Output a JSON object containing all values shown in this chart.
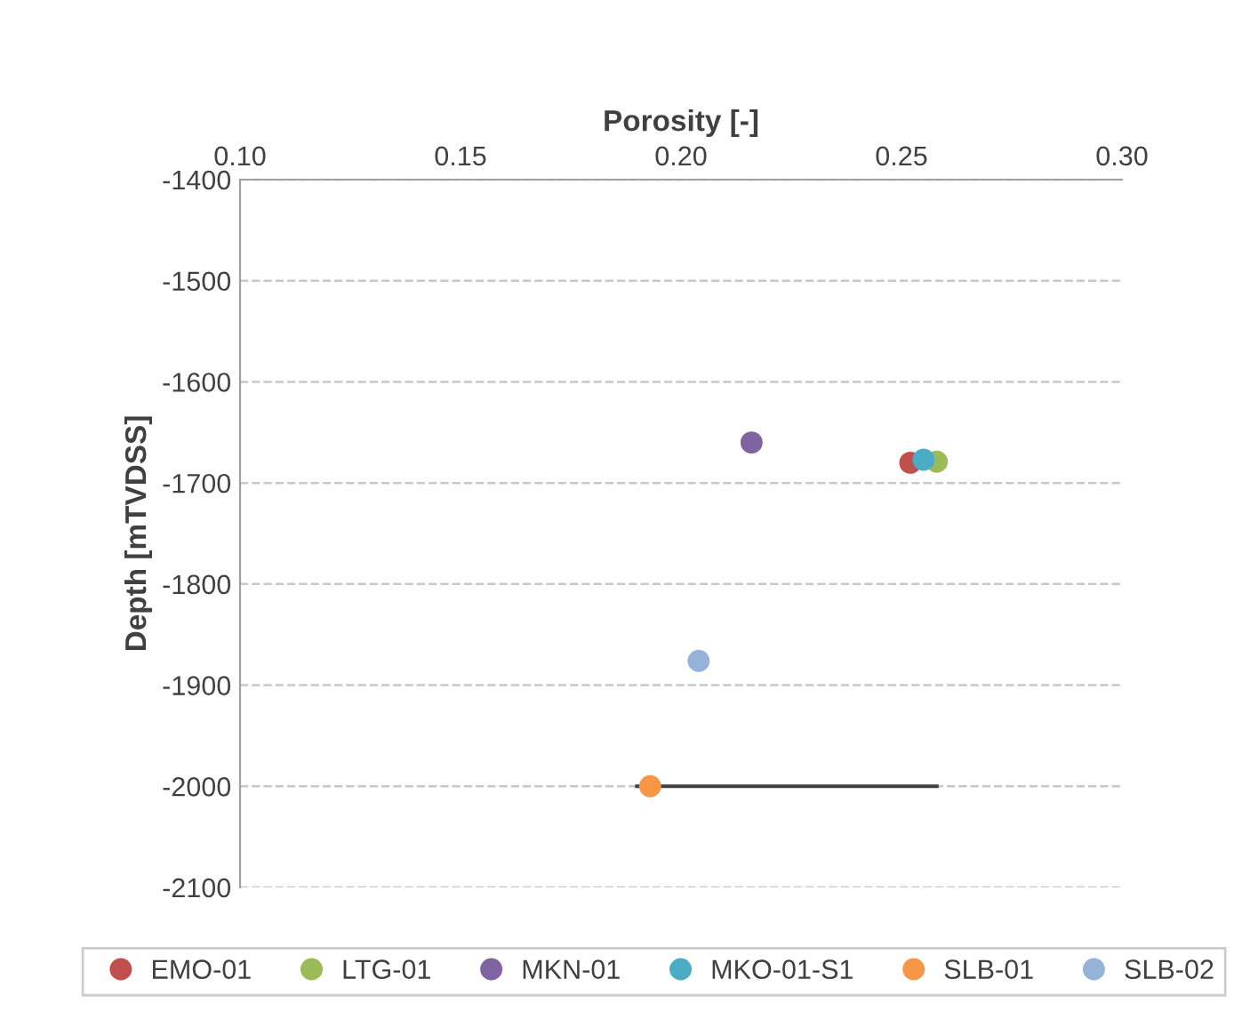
{
  "chart_data": {
    "type": "scatter",
    "xlabel": "Porosity [-]",
    "ylabel": "Depth [mTVDSS]",
    "xlim": [
      0.1,
      0.3
    ],
    "xticks": [
      {
        "value": 0.1,
        "label": "0.10"
      },
      {
        "value": 0.15,
        "label": "0.15"
      },
      {
        "value": 0.2,
        "label": "0.20"
      },
      {
        "value": 0.25,
        "label": "0.25"
      },
      {
        "value": 0.3,
        "label": "0.30"
      }
    ],
    "ylim": [
      -2100,
      -1400
    ],
    "yticks": [
      -2100,
      -2000,
      -1900,
      -1800,
      -1700,
      -1600,
      -1500,
      -1400
    ],
    "grid": "y",
    "legend": "bottom",
    "marker": "circle",
    "series": [
      {
        "name": "EMO-01",
        "color": "#c0504d",
        "x": [
          0.252
        ],
        "values": [
          -1680
        ]
      },
      {
        "name": "LTG-01",
        "color": "#9bbb59",
        "x": [
          0.258
        ],
        "values": [
          -1679
        ]
      },
      {
        "name": "MKN-01",
        "color": "#8064a2",
        "x": [
          0.216
        ],
        "values": [
          -1660
        ]
      },
      {
        "name": "MKO-01-S1",
        "color": "#4bacc6",
        "x": [
          0.255
        ],
        "values": [
          -1677
        ]
      },
      {
        "name": "SLB-01",
        "color": "#f79646",
        "x": [
          0.193
        ],
        "values": [
          -2000
        ],
        "xerrors": [
          [
            0.19,
            0.258
          ]
        ]
      },
      {
        "name": "SLB-02",
        "color": "#95b3d7",
        "x": [
          0.204
        ],
        "values": [
          -1876
        ]
      }
    ]
  }
}
